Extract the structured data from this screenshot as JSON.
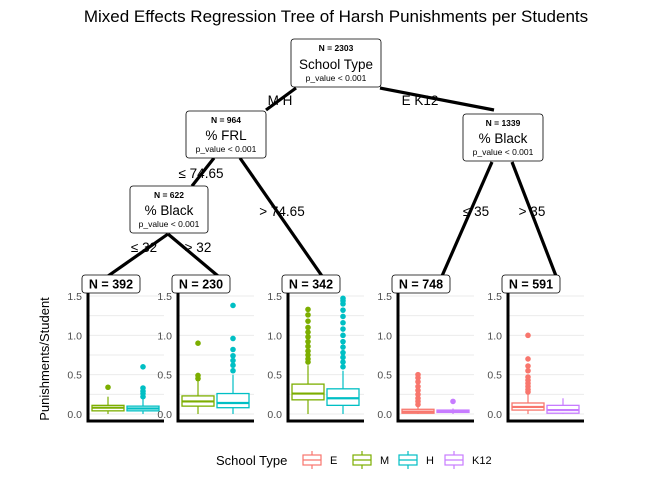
{
  "chart_data": {
    "type": "regression-tree-with-boxplots",
    "title": "Mixed Effects Regression Tree of Harsh Punishments per Students",
    "ylabel": "Punishments/Student",
    "ylim": [
      0,
      1.5
    ],
    "yticks": [
      "0.0",
      "0.5",
      "1.0",
      "1.5"
    ],
    "nodes": [
      {
        "id": "root",
        "n": "N = 2303",
        "variable": "School Type",
        "p": "p_value < 0.001"
      },
      {
        "id": "frl",
        "n": "N = 964",
        "variable": "% FRL",
        "p": "p_value < 0.001"
      },
      {
        "id": "black_right",
        "n": "N = 1339",
        "variable": "% Black",
        "p": "p_value < 0.001"
      },
      {
        "id": "black_left",
        "n": "N = 622",
        "variable": "% Black",
        "p": "p_value < 0.001"
      }
    ],
    "edges": [
      {
        "from": "root",
        "to": "frl",
        "label": "M H"
      },
      {
        "from": "root",
        "to": "black_right",
        "label": "E K12"
      },
      {
        "from": "frl",
        "to": "black_left",
        "label": "≤ 74.65"
      },
      {
        "from": "frl",
        "to": "leaf3",
        "label": "> 74.65"
      },
      {
        "from": "black_left",
        "to": "leaf1",
        "label": "≤ 32"
      },
      {
        "from": "black_left",
        "to": "leaf2",
        "label": "> 32"
      },
      {
        "from": "black_right",
        "to": "leaf4",
        "label": "≤ 35"
      },
      {
        "from": "black_right",
        "to": "leaf5",
        "label": "> 35"
      }
    ],
    "leaves": [
      {
        "id": "leaf1",
        "n": "N = 392",
        "boxes": [
          {
            "group": "M",
            "q1": 0.04,
            "median": 0.08,
            "q3": 0.11,
            "whisker_low": 0.0,
            "whisker_high": 0.22,
            "outliers": [
              0.34
            ]
          },
          {
            "group": "H",
            "q1": 0.04,
            "median": 0.07,
            "q3": 0.1,
            "whisker_low": 0.0,
            "whisker_high": 0.19,
            "outliers": [
              0.22,
              0.26,
              0.29,
              0.33,
              0.6
            ]
          }
        ]
      },
      {
        "id": "leaf2",
        "n": "N = 230",
        "boxes": [
          {
            "group": "M",
            "q1": 0.1,
            "median": 0.16,
            "q3": 0.23,
            "whisker_low": 0.0,
            "whisker_high": 0.42,
            "outliers": [
              0.45,
              0.49,
              0.9
            ]
          },
          {
            "group": "H",
            "q1": 0.08,
            "median": 0.14,
            "q3": 0.26,
            "whisker_low": 0.0,
            "whisker_high": 0.5,
            "outliers": [
              0.55,
              0.62,
              0.68,
              0.74,
              0.82,
              0.96,
              1.38
            ]
          }
        ]
      },
      {
        "id": "leaf3",
        "n": "N = 342",
        "boxes": [
          {
            "group": "M",
            "q1": 0.18,
            "median": 0.26,
            "q3": 0.38,
            "whisker_low": 0.0,
            "whisker_high": 0.62,
            "outliers": [
              0.66,
              0.7,
              0.75,
              0.8,
              0.86,
              0.92,
              0.98,
              1.04,
              1.1,
              1.18,
              1.26,
              1.33
            ]
          },
          {
            "group": "H",
            "q1": 0.11,
            "median": 0.2,
            "q3": 0.32,
            "whisker_low": 0.0,
            "whisker_high": 0.55,
            "outliers": [
              0.6,
              0.66,
              0.72,
              0.78,
              0.85,
              0.92,
              1.0,
              1.08,
              1.16,
              1.24,
              1.32,
              1.4,
              1.44,
              1.47
            ]
          }
        ]
      },
      {
        "id": "leaf4",
        "n": "N = 748",
        "boxes": [
          {
            "group": "E",
            "q1": 0.01,
            "median": 0.03,
            "q3": 0.06,
            "whisker_low": 0.0,
            "whisker_high": 0.1,
            "outliers": [
              0.12,
              0.16,
              0.2,
              0.25,
              0.3,
              0.35,
              0.41,
              0.46,
              0.5
            ]
          },
          {
            "group": "K12",
            "q1": 0.02,
            "median": 0.03,
            "q3": 0.05,
            "whisker_low": 0.0,
            "whisker_high": 0.07,
            "outliers": [
              0.16
            ]
          }
        ]
      },
      {
        "id": "leaf5",
        "n": "N = 591",
        "boxes": [
          {
            "group": "E",
            "q1": 0.05,
            "median": 0.09,
            "q3": 0.14,
            "whisker_low": 0.0,
            "whisker_high": 0.26,
            "outliers": [
              0.28,
              0.31,
              0.35,
              0.39,
              0.43,
              0.47,
              0.55,
              0.61,
              0.7,
              1.0
            ]
          },
          {
            "group": "K12",
            "q1": 0.01,
            "median": 0.05,
            "q3": 0.11,
            "whisker_low": 0.0,
            "whisker_high": 0.2,
            "outliers": []
          }
        ]
      }
    ],
    "legend": {
      "title": "School Type",
      "placement": "bottom",
      "items": [
        {
          "label": "E",
          "color": "#F8766D"
        },
        {
          "label": "M",
          "color": "#7CAE00"
        },
        {
          "label": "H",
          "color": "#00BFC4"
        },
        {
          "label": "K12",
          "color": "#C77CFF"
        }
      ]
    }
  }
}
